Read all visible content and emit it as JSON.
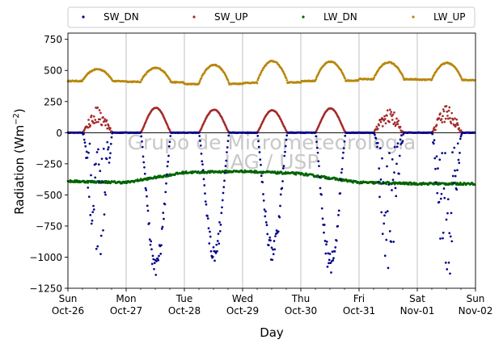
{
  "chart_data": {
    "type": "scatter",
    "title": "",
    "xlabel": "Day",
    "ylabel": "Radiation (Wm",
    "ylabel_superscript": "−2",
    "ylabel_close": ")",
    "ylim": [
      -1250,
      800
    ],
    "yticks": [
      -1250,
      -1000,
      -750,
      -500,
      -250,
      0,
      250,
      500,
      750
    ],
    "xlim": [
      "2014-10-26",
      "2014-11-02"
    ],
    "xticks": [
      {
        "day": "Sun",
        "date": "Oct-26"
      },
      {
        "day": "Mon",
        "date": "Oct-27"
      },
      {
        "day": "Tue",
        "date": "Oct-28"
      },
      {
        "day": "Wed",
        "date": "Oct-29"
      },
      {
        "day": "Thu",
        "date": "Oct-30"
      },
      {
        "day": "Fri",
        "date": "Oct-31"
      },
      {
        "day": "Sat",
        "date": "Nov-01"
      },
      {
        "day": "Sun",
        "date": "Nov-02"
      }
    ],
    "grid": "vertical",
    "zero_line": true,
    "legend_position": "top-outside",
    "watermark": [
      "Grupo de Micrometeorologia",
      "IAG / USP"
    ],
    "series": [
      {
        "name": "SW_DN",
        "color": "#00008b",
        "night": 0,
        "daily_peak": [
          -1000,
          -1150,
          -1050,
          -1030,
          -1130,
          -1040,
          -1180
        ],
        "clear": [
          false,
          true,
          true,
          true,
          true,
          false,
          false
        ]
      },
      {
        "name": "SW_UP",
        "color": "#a52a2a",
        "night": 0,
        "daily_peak": [
          190,
          200,
          185,
          180,
          195,
          185,
          210
        ],
        "clear": [
          false,
          true,
          true,
          true,
          true,
          false,
          false
        ]
      },
      {
        "name": "LW_DN",
        "color": "#006400",
        "daily_mean": [
          -390,
          -400,
          -320,
          -310,
          -330,
          -400,
          -410,
          -410
        ]
      },
      {
        "name": "LW_UP",
        "color": "#b8860b",
        "night_value": [
          415,
          410,
          390,
          400,
          415,
          430,
          425,
          420
        ],
        "daily_peak": [
          510,
          520,
          545,
          575,
          570,
          565,
          560
        ]
      }
    ]
  }
}
